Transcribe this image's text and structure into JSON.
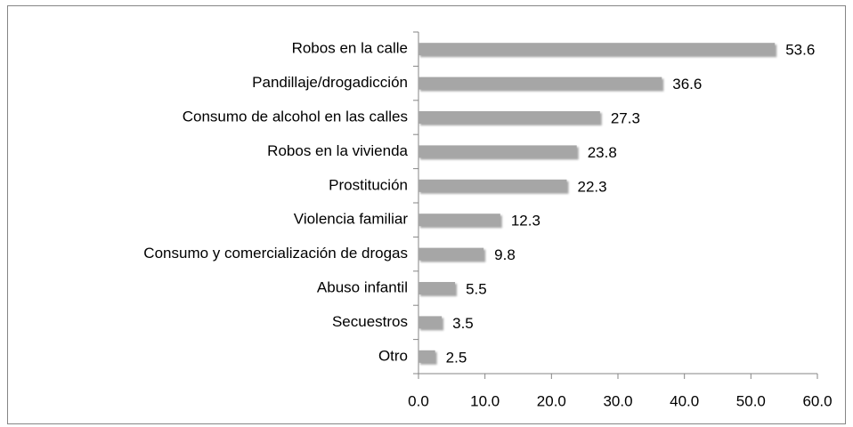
{
  "chart_data": {
    "type": "barh",
    "categories": [
      "Robos en la calle",
      "Pandillaje/drogadicción",
      "Consumo de alcohol en las calles",
      "Robos en la vivienda",
      "Prostitución",
      "Violencia familiar",
      "Consumo y comercialización de drogas",
      "Abuso infantil",
      "Secuestros",
      "Otro"
    ],
    "values": [
      53.6,
      36.6,
      27.3,
      23.8,
      22.3,
      12.3,
      9.8,
      5.5,
      3.5,
      2.5
    ],
    "color": "#a6a6a6",
    "xlim": [
      0,
      60
    ],
    "xticks": [
      {
        "value": 0,
        "label": "0.0"
      },
      {
        "value": 10,
        "label": "10.0"
      },
      {
        "value": 20,
        "label": "20.0"
      },
      {
        "value": 30,
        "label": "30.0"
      },
      {
        "value": 40,
        "label": "40.0"
      },
      {
        "value": 50,
        "label": "50.0"
      },
      {
        "value": 60,
        "label": "60.0"
      }
    ]
  }
}
